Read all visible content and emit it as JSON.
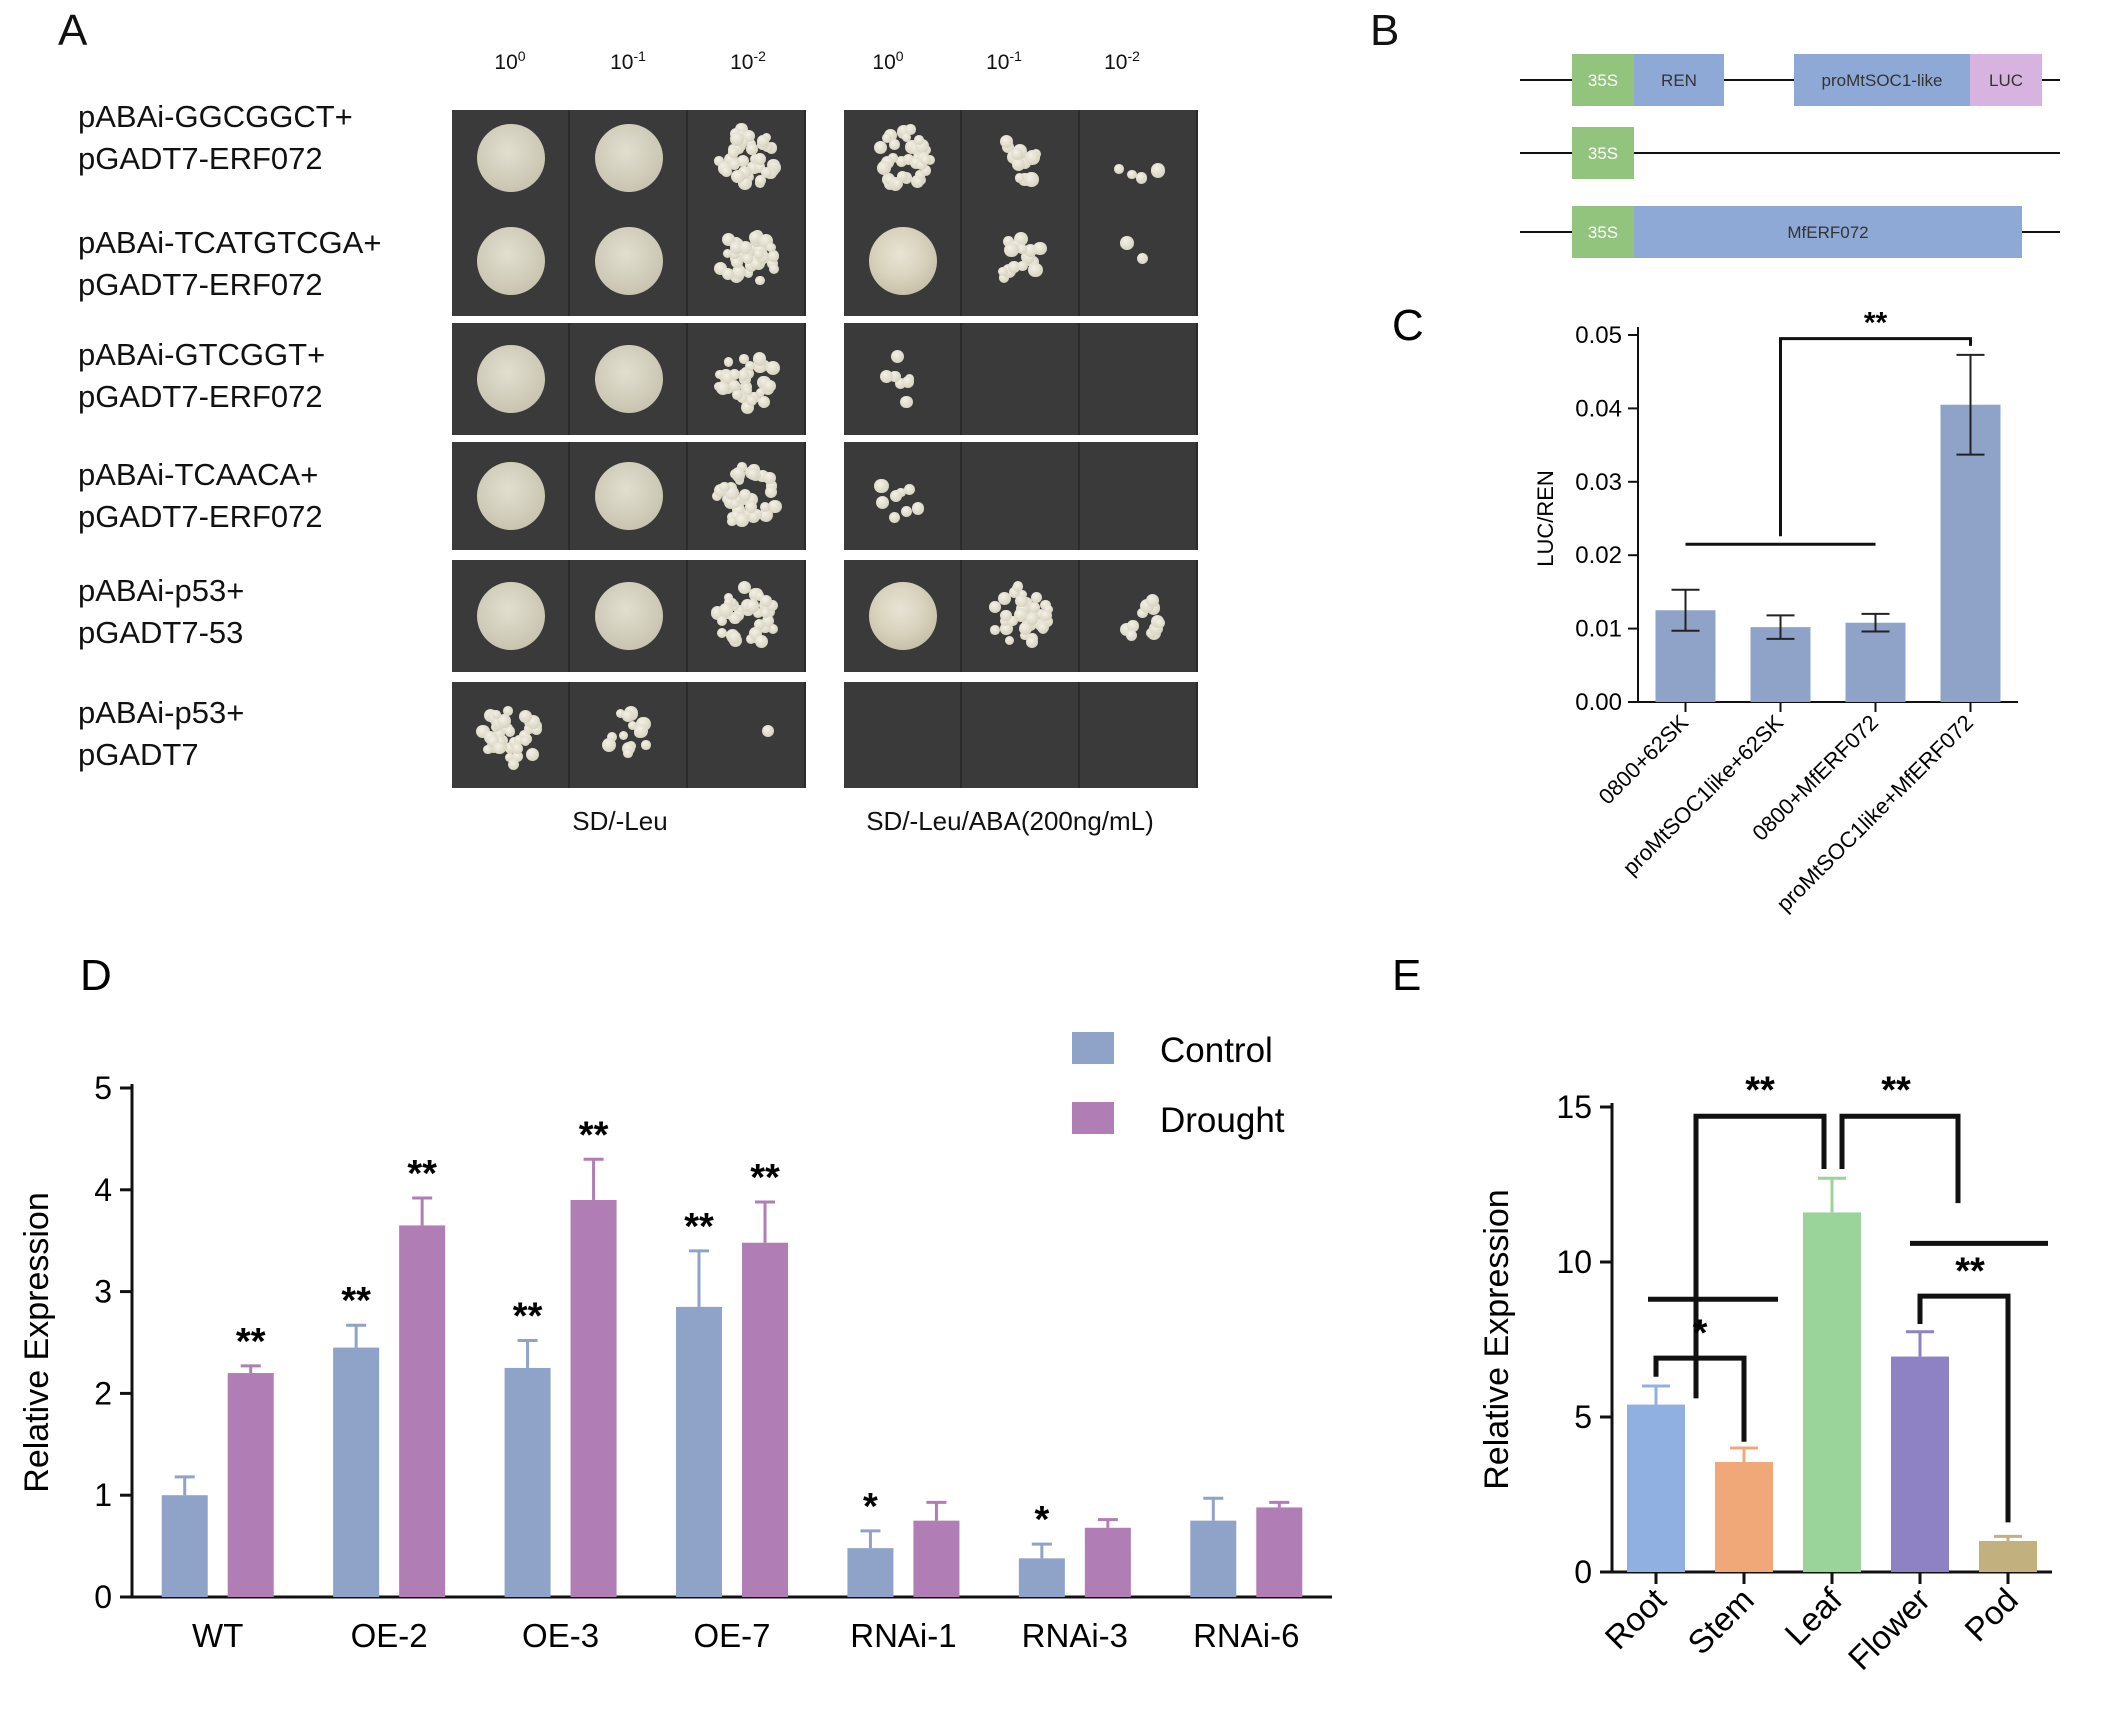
{
  "panelA": {
    "letter": "A",
    "dilutions": [
      "10",
      "10",
      "10"
    ],
    "dilution_exps": [
      "0",
      "-1",
      "-2"
    ],
    "rows": [
      {
        "line1": "pABAi-GGCGGCT+",
        "line2": "pGADT7-ERF072"
      },
      {
        "line1": "pABAi-TCATGTCGA+",
        "line2": "pGADT7-ERF072"
      },
      {
        "line1": "pABAi-GTCGGT+",
        "line2": "pGADT7-ERF072"
      },
      {
        "line1": "pABAi-TCAACA+",
        "line2": "pGADT7-ERF072"
      },
      {
        "line1": "pABAi-p53+",
        "line2": "pGADT7-53"
      },
      {
        "line1": "pABAi-p53+",
        "line2": "pGADT7"
      }
    ],
    "medium_left": "SD/-Leu",
    "medium_right": "SD/-Leu/ABA(200ng/mL)"
  },
  "panelB": {
    "letter": "B",
    "constructs": [
      {
        "parts": [
          "35S",
          "REN",
          "proMtSOC1-like",
          "LUC"
        ]
      },
      {
        "parts": [
          "35S"
        ]
      },
      {
        "parts": [
          "35S",
          "MfERF072"
        ]
      }
    ],
    "colors": {
      "s35": "#93c47d",
      "box": "#8fa9d6",
      "luc": "#d9b3e0"
    }
  },
  "chart_data": [
    {
      "panel": "C",
      "type": "bar",
      "ylabel": "LUC/REN",
      "categories": [
        "0800+62SK",
        "proMtSOC1like+62SK",
        "0800+MfERF072",
        "proMtSOC1like+MfERF072"
      ],
      "values": [
        0.0125,
        0.0102,
        0.0108,
        0.0405
      ],
      "errors": [
        0.0028,
        0.0016,
        0.0012,
        0.0068
      ],
      "ylim": [
        0,
        0.05
      ],
      "yticks": [
        "0.00",
        "0.01",
        "0.02",
        "0.03",
        "0.04",
        "0.05"
      ],
      "annotations": [
        "**"
      ],
      "color": "#8fa3c8"
    },
    {
      "panel": "D",
      "type": "bar",
      "ylabel": "Relative Expression",
      "categories": [
        "WT",
        "OE-2",
        "OE-3",
        "OE-7",
        "RNAi-1",
        "RNAi-3",
        "RNAi-6"
      ],
      "series": [
        {
          "name": "Control",
          "values": [
            1.0,
            2.45,
            2.25,
            2.85,
            0.48,
            0.38,
            0.75
          ],
          "errors": [
            0.18,
            0.22,
            0.27,
            0.55,
            0.17,
            0.14,
            0.22
          ],
          "stars": [
            "",
            "**",
            "**",
            "**",
            "*",
            "*",
            ""
          ],
          "color": "#8fa3c8"
        },
        {
          "name": "Drought",
          "values": [
            2.2,
            3.65,
            3.9,
            3.48,
            0.75,
            0.68,
            0.88
          ],
          "errors": [
            0.07,
            0.27,
            0.4,
            0.4,
            0.18,
            0.08,
            0.05
          ],
          "stars": [
            "**",
            "**",
            "**",
            "**",
            "",
            "",
            ""
          ],
          "color": "#b07db4"
        }
      ],
      "ylim": [
        0,
        5
      ],
      "yticks": [
        "0",
        "1",
        "2",
        "3",
        "4",
        "5"
      ],
      "legend": "top-right"
    },
    {
      "panel": "E",
      "type": "bar",
      "ylabel": "Relative Expression",
      "categories": [
        "Root",
        "Stem",
        "Leaf",
        "Flower",
        "Pod"
      ],
      "values": [
        5.4,
        3.55,
        11.6,
        6.95,
        1.0
      ],
      "errors": [
        0.6,
        0.45,
        1.1,
        0.8,
        0.15
      ],
      "colors": [
        "#8fb0e0",
        "#f0a878",
        "#9bd49a",
        "#8e82c4",
        "#c2b07e"
      ],
      "ylim": [
        0,
        15
      ],
      "yticks": [
        "0",
        "5",
        "10",
        "15"
      ],
      "annotations": [
        "**",
        "**",
        "*",
        "**"
      ]
    }
  ],
  "panel_letters": {
    "C": "C",
    "D": "D",
    "E": "E"
  }
}
